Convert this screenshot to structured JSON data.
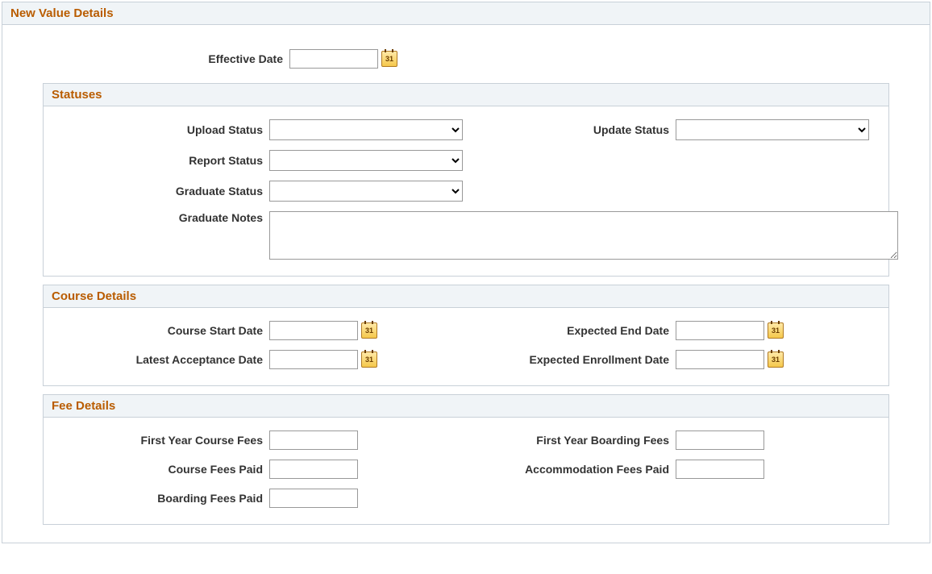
{
  "panel": {
    "title": "New Value Details"
  },
  "effective_date": {
    "label": "Effective Date",
    "value": "",
    "cal": "31"
  },
  "statuses": {
    "title": "Statuses",
    "upload_status_label": "Upload Status",
    "upload_status_value": "",
    "update_status_label": "Update Status",
    "update_status_value": "",
    "report_status_label": "Report Status",
    "report_status_value": "",
    "graduate_status_label": "Graduate Status",
    "graduate_status_value": "",
    "graduate_notes_label": "Graduate Notes",
    "graduate_notes_value": ""
  },
  "course": {
    "title": "Course Details",
    "start_label": "Course Start Date",
    "start_value": "",
    "expected_end_label": "Expected End Date",
    "expected_end_value": "",
    "latest_accept_label": "Latest Acceptance Date",
    "latest_accept_value": "",
    "expected_enroll_label": "Expected Enrollment Date",
    "expected_enroll_value": "",
    "cal": "31"
  },
  "fees": {
    "title": "Fee Details",
    "first_year_course_label": "First Year Course Fees",
    "first_year_course_value": "",
    "first_year_boarding_label": "First Year Boarding Fees",
    "first_year_boarding_value": "",
    "course_paid_label": "Course Fees Paid",
    "course_paid_value": "",
    "accommodation_paid_label": "Accommodation Fees Paid",
    "accommodation_paid_value": "",
    "boarding_paid_label": "Boarding Fees Paid",
    "boarding_paid_value": ""
  }
}
